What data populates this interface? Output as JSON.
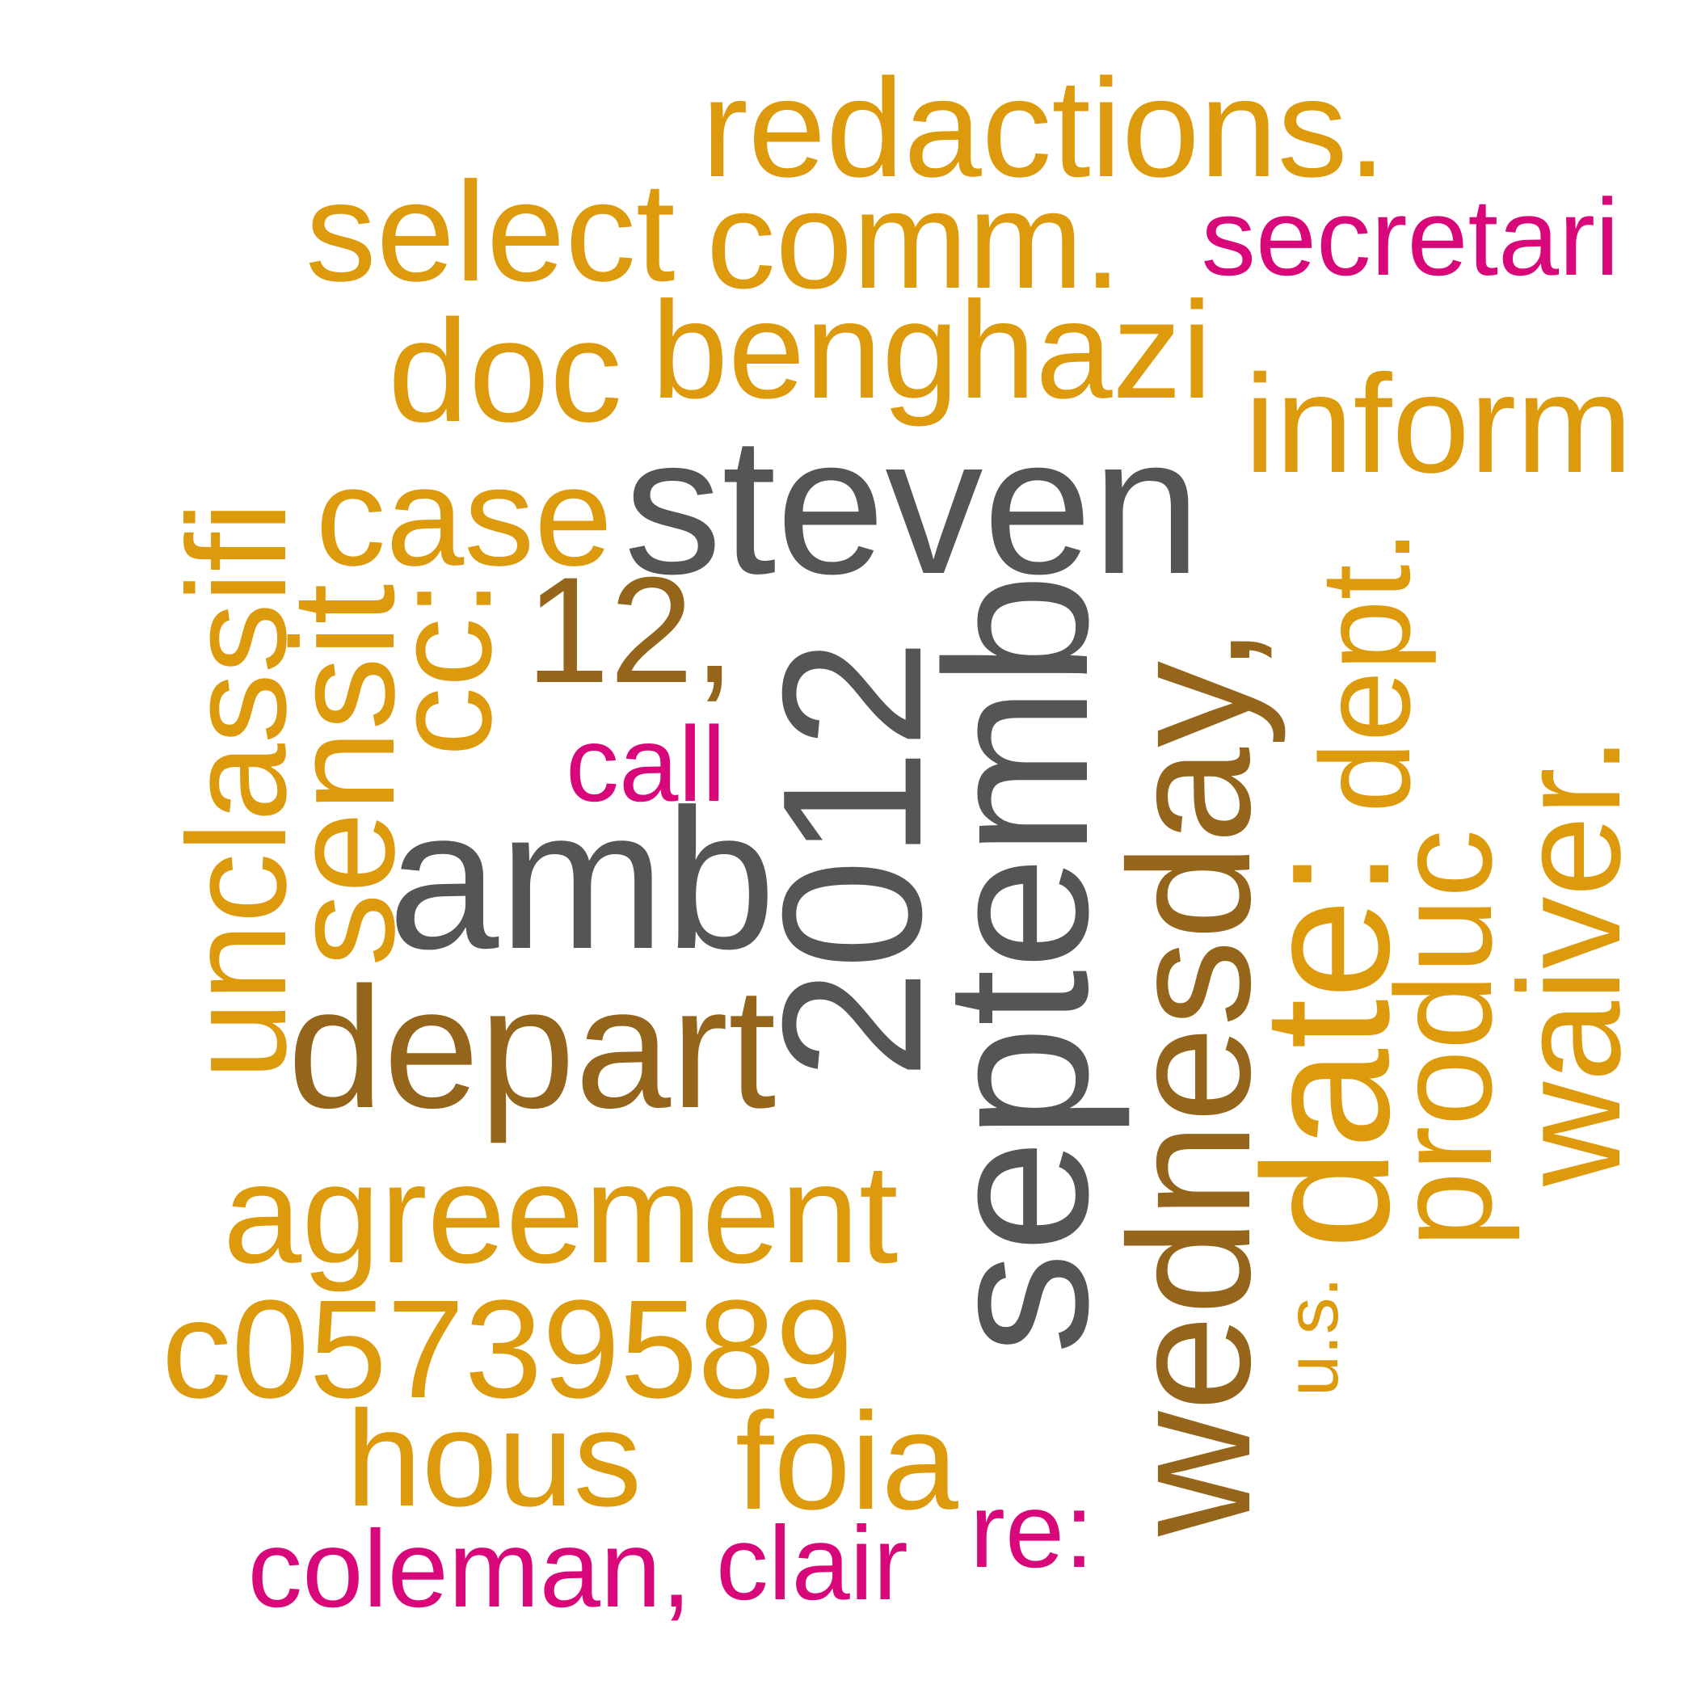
{
  "colors": {
    "gold": "#DE9A0D",
    "brown": "#94651A",
    "gray": "#555555",
    "magenta": "#D9087A"
  },
  "words": [
    {
      "text": "redactions.",
      "color": "gold"
    },
    {
      "text": "select",
      "color": "gold"
    },
    {
      "text": "comm.",
      "color": "gold"
    },
    {
      "text": "secretari",
      "color": "magenta"
    },
    {
      "text": "doc",
      "color": "gold"
    },
    {
      "text": "benghazi",
      "color": "gold"
    },
    {
      "text": "inform",
      "color": "gold"
    },
    {
      "text": "case",
      "color": "gold"
    },
    {
      "text": "steven",
      "color": "gray"
    },
    {
      "text": "12,",
      "color": "brown"
    },
    {
      "text": "call",
      "color": "magenta"
    },
    {
      "text": "amb",
      "color": "gray"
    },
    {
      "text": "depart",
      "color": "brown"
    },
    {
      "text": "agreement",
      "color": "gold"
    },
    {
      "text": "c05739589",
      "color": "gold"
    },
    {
      "text": "hous",
      "color": "gold"
    },
    {
      "text": "foia",
      "color": "gold"
    },
    {
      "text": "coleman,",
      "color": "magenta"
    },
    {
      "text": "clair",
      "color": "magenta"
    },
    {
      "text": "re:",
      "color": "magenta"
    },
    {
      "text": "unclassifi",
      "color": "gold"
    },
    {
      "text": "sensit",
      "color": "gold"
    },
    {
      "text": "cc:",
      "color": "gold"
    },
    {
      "text": "2012",
      "color": "gray"
    },
    {
      "text": "septemb",
      "color": "gray"
    },
    {
      "text": "wednesday,",
      "color": "brown"
    },
    {
      "text": "u.s.",
      "color": "gold"
    },
    {
      "text": "date:",
      "color": "gold"
    },
    {
      "text": "dept.",
      "color": "gold"
    },
    {
      "text": "produc",
      "color": "gold"
    },
    {
      "text": "waiver.",
      "color": "gold"
    }
  ]
}
